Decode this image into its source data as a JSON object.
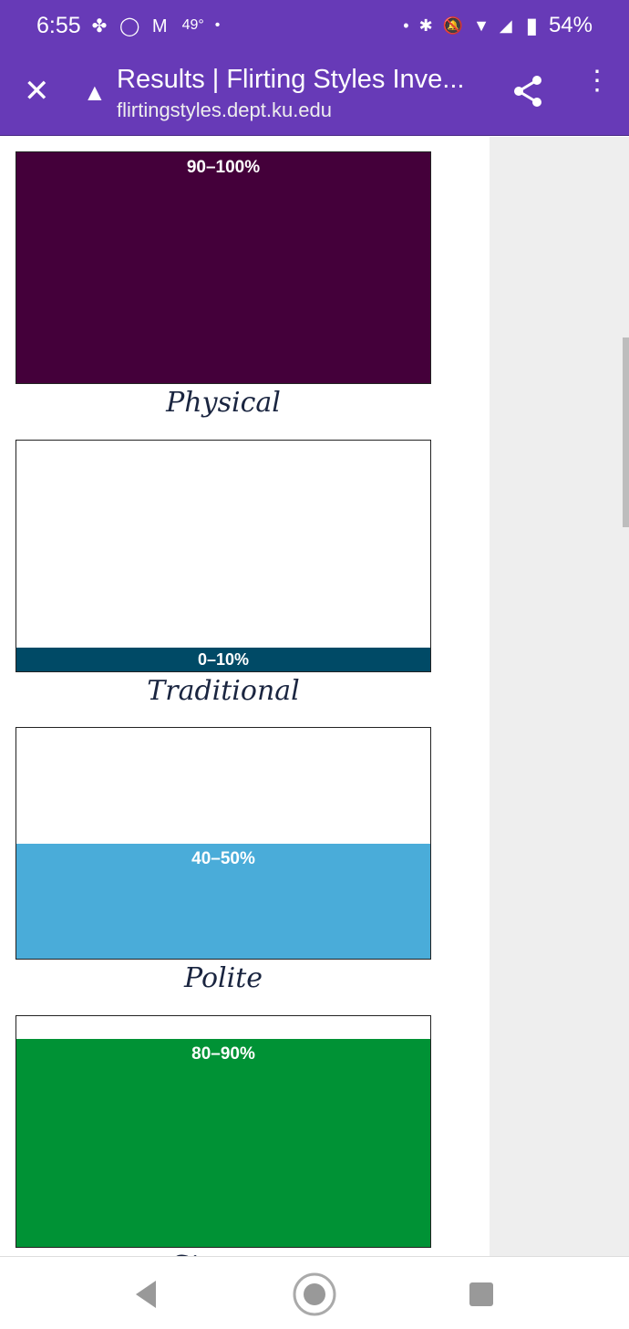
{
  "status_bar": {
    "time": "6:55",
    "left_icons": "✤ ◯ M",
    "temp": "49°",
    "right_icons": "• ✱ 🔕 ▼ ◢",
    "battery": "54%"
  },
  "toolbar": {
    "title": "Results | Flirting Styles Inve...",
    "url": "flirtingstyles.dept.ku.edu"
  },
  "results": [
    {
      "label": "Physical",
      "range": "90–100%",
      "fill_percent": 100,
      "color": "#44003a"
    },
    {
      "label": "Traditional",
      "range": "0–10%",
      "fill_percent": 10,
      "color": "#004a66"
    },
    {
      "label": "Polite",
      "range": "40–50%",
      "fill_percent": 50,
      "color": "#4aacd9"
    },
    {
      "label": "Sincere",
      "range": "80–90%",
      "fill_percent": 90,
      "color": "#009235"
    }
  ]
}
